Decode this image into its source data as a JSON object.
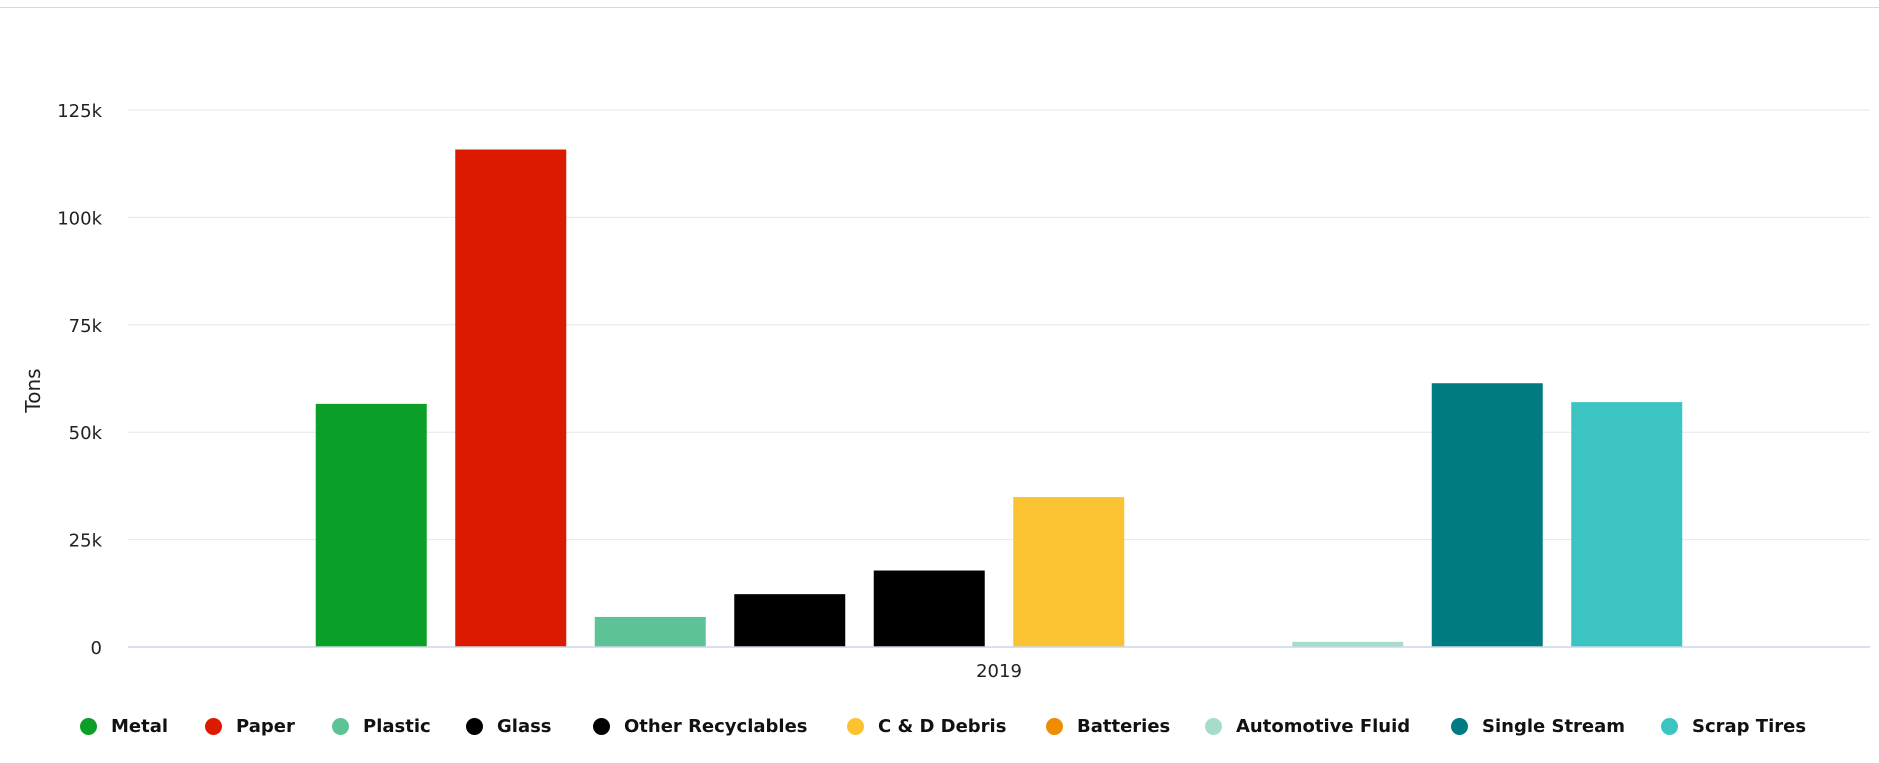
{
  "chart_data": {
    "type": "bar",
    "categories": [
      "2019"
    ],
    "series": [
      {
        "name": "Metal",
        "color": "#0a9f27",
        "values": [
          56600
        ]
      },
      {
        "name": "Paper",
        "color": "#dc1a00",
        "values": [
          115800
        ]
      },
      {
        "name": "Plastic",
        "color": "#5ec297",
        "values": [
          7000
        ]
      },
      {
        "name": "Glass",
        "color": "#000000",
        "values": [
          12300
        ]
      },
      {
        "name": "Other Recyclables",
        "color": "#000000",
        "values": [
          17800
        ]
      },
      {
        "name": "C & D Debris",
        "color": "#fbc232",
        "values": [
          34900
        ]
      },
      {
        "name": "Batteries",
        "color": "#ef8c00",
        "values": [
          0
        ]
      },
      {
        "name": "Automotive Fluid",
        "color": "#a6ddc8",
        "values": [
          1200
        ]
      },
      {
        "name": "Single Stream",
        "color": "#007b82",
        "values": [
          61400
        ]
      },
      {
        "name": "Scrap Tires",
        "color": "#3cc4c2",
        "values": [
          57000
        ]
      }
    ],
    "ylabel": "Tons",
    "ylim": [
      0,
      125000
    ],
    "yticks": [
      0,
      25000,
      50000,
      75000,
      100000,
      125000
    ],
    "ytick_labels": [
      "0",
      "25k",
      "50k",
      "75k",
      "100k",
      "125k"
    ],
    "grid": true,
    "legend_position": "bottom"
  }
}
